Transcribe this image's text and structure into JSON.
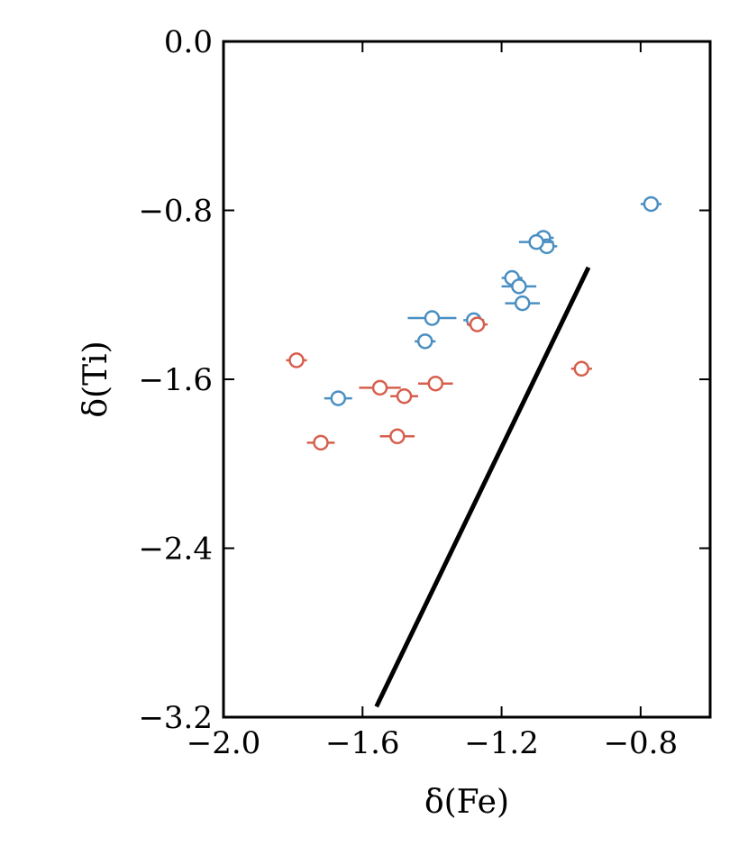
{
  "chart_data": {
    "type": "scatter",
    "xlabel": "δ(Fe)",
    "ylabel": "δ(Ti)",
    "xlim": [
      -2.0,
      -0.6
    ],
    "ylim": [
      -3.2,
      0.0
    ],
    "x_ticks": [
      -2.0,
      -1.6,
      -1.2,
      -0.8
    ],
    "y_ticks": [
      0.0,
      -0.8,
      -1.6,
      -2.4,
      -3.2
    ],
    "x_tick_labels": [
      "−2.0",
      "−1.6",
      "−1.2",
      "−0.8"
    ],
    "y_tick_labels": [
      "0.0",
      "−0.8",
      "−1.6",
      "−2.4",
      "−3.2"
    ],
    "grid": false,
    "colors": {
      "blue": "#4a8fc2",
      "red": "#d65f4d",
      "line": "#000000"
    },
    "series": [
      {
        "color": "blue",
        "points": [
          {
            "x": -0.77,
            "y": -0.77,
            "xerr": 0.03
          },
          {
            "x": -1.08,
            "y": -0.93,
            "xerr": 0.03
          },
          {
            "x": -1.07,
            "y": -0.97,
            "xerr": 0.03
          },
          {
            "x": -1.1,
            "y": -0.95,
            "xerr": 0.05
          },
          {
            "x": -1.17,
            "y": -1.12,
            "xerr": 0.03
          },
          {
            "x": -1.15,
            "y": -1.16,
            "xerr": 0.05
          },
          {
            "x": -1.14,
            "y": -1.24,
            "xerr": 0.05
          },
          {
            "x": -1.4,
            "y": -1.31,
            "xerr": 0.07
          },
          {
            "x": -1.28,
            "y": -1.32,
            "xerr": 0.03
          },
          {
            "x": -1.42,
            "y": -1.42,
            "xerr": 0.03
          },
          {
            "x": -1.67,
            "y": -1.69,
            "xerr": 0.04
          }
        ]
      },
      {
        "color": "red",
        "points": [
          {
            "x": -1.27,
            "y": -1.34,
            "xerr": 0.03
          },
          {
            "x": -1.79,
            "y": -1.51,
            "xerr": 0.03
          },
          {
            "x": -0.97,
            "y": -1.55,
            "xerr": 0.03
          },
          {
            "x": -1.39,
            "y": -1.62,
            "xerr": 0.05
          },
          {
            "x": -1.55,
            "y": -1.64,
            "xerr": 0.06
          },
          {
            "x": -1.48,
            "y": -1.68,
            "xerr": 0.04
          },
          {
            "x": -1.72,
            "y": -1.9,
            "xerr": 0.04
          },
          {
            "x": -1.5,
            "y": -1.87,
            "xerr": 0.05
          }
        ]
      }
    ],
    "reference_line": {
      "x": [
        -1.56,
        -0.95
      ],
      "y": [
        -3.15,
        -1.07
      ]
    }
  }
}
